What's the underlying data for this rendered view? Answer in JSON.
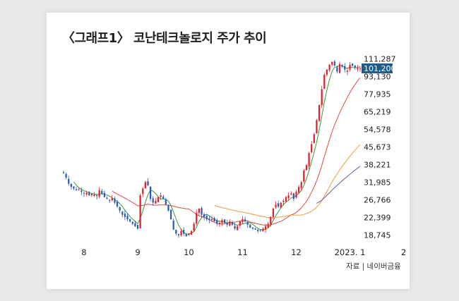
{
  "title": "〈그래프1〉 코난테크놀로지 주가 추이",
  "source": "자료 | 네이버금융",
  "colors": {
    "up": "#e0202c",
    "down": "#2a5ab8",
    "ma5": "#3a9a3a",
    "ma20": "#e04848",
    "ma60": "#ef9a3a",
    "ma120": "#6a5aa0",
    "highlight_bg": "#1b5e8e"
  },
  "chart_data": {
    "type": "candlestick",
    "title": "〈그래프1〉 코난테크놀로지 주가 추이",
    "yscale": "log",
    "ylim": [
      17500,
      121000
    ],
    "yticks": [
      111287,
      93130,
      77935,
      65219,
      54578,
      45673,
      38221,
      31985,
      26766,
      22399,
      18745
    ],
    "ytick_labels": [
      "111,287",
      "93,130",
      "77,935",
      "65,219",
      "54,578",
      "45,673",
      "38,221",
      "31,985",
      "26,766",
      "22,399",
      "18,745"
    ],
    "last_price": 101200,
    "last_price_label": "101,200",
    "x_months": [
      {
        "label": "8",
        "day_index": 8
      },
      {
        "label": "9",
        "day_index": 29
      },
      {
        "label": "10",
        "day_index": 49
      },
      {
        "label": "11",
        "day_index": 70
      },
      {
        "label": "12",
        "day_index": 91
      },
      {
        "label": "2023. 1",
        "day_index": 112
      },
      {
        "label": "2",
        "day_index": 133
      }
    ],
    "closes": [
      35000,
      33500,
      31500,
      30500,
      30000,
      29500,
      29800,
      29000,
      28500,
      28800,
      28000,
      28400,
      28200,
      27800,
      29500,
      28500,
      27500,
      27000,
      26500,
      27200,
      26000,
      25000,
      24000,
      23000,
      22500,
      22000,
      21500,
      21000,
      20500,
      20000,
      28000,
      30000,
      32000,
      31000,
      27000,
      26000,
      26500,
      27500,
      28000,
      27000,
      25500,
      24000,
      22000,
      19800,
      19000,
      18700,
      19500,
      19000,
      18500,
      19000,
      19500,
      21000,
      23500,
      24500,
      23000,
      22500,
      22000,
      21800,
      22000,
      21500,
      21000,
      21200,
      21800,
      21200,
      20800,
      21500,
      20800,
      20000,
      20500,
      21500,
      22000,
      21500,
      20800,
      20200,
      20000,
      19800,
      19500,
      19600,
      20000,
      20500,
      21000,
      22500,
      24500,
      25500,
      25000,
      26000,
      26500,
      27500,
      28000,
      28500,
      27000,
      29000,
      30500,
      32000,
      36000,
      38000,
      43000,
      47000,
      52000,
      60000,
      70000,
      82000,
      95000,
      100000,
      105000,
      108000,
      104000,
      98000,
      106000,
      103000,
      100000,
      99000,
      105000,
      104000,
      102000,
      101500,
      101200
    ]
  }
}
